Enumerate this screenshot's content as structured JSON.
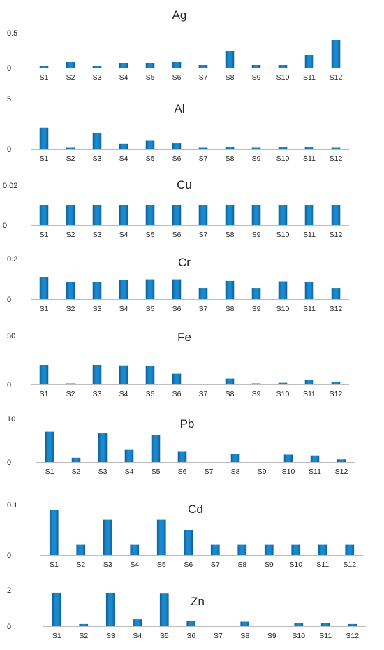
{
  "bar_color": "#1a8ad0",
  "bar_edge_color": "#0f5f95",
  "axis_color": "#bdbdbd",
  "chart_data": [
    {
      "type": "bar",
      "title": "Ag",
      "categories": [
        "S1",
        "S2",
        "S3",
        "S4",
        "S5",
        "S6",
        "S7",
        "S8",
        "S9",
        "S10",
        "S11",
        "S12"
      ],
      "values": [
        0.03,
        0.08,
        0.03,
        0.07,
        0.07,
        0.09,
        0.04,
        0.24,
        0.04,
        0.04,
        0.18,
        0.4
      ],
      "ylim": [
        0,
        0.5
      ],
      "yticks": [
        "0",
        "0.5"
      ],
      "grid": false
    },
    {
      "type": "bar",
      "title": "Al",
      "categories": [
        "S1",
        "S2",
        "S3",
        "S4",
        "S5",
        "S6",
        "S7",
        "S8",
        "S9",
        "S10",
        "S11",
        "S12"
      ],
      "values": [
        2.1,
        0.1,
        1.55,
        0.5,
        0.8,
        0.55,
        0.02,
        0.2,
        0.02,
        0.2,
        0.2,
        0.02
      ],
      "ylim": [
        0,
        5
      ],
      "yticks": [
        "0",
        "5"
      ],
      "grid": false
    },
    {
      "type": "bar",
      "title": "Cu",
      "categories": [
        "S1",
        "S2",
        "S3",
        "S4",
        "S5",
        "S6",
        "S7",
        "S8",
        "S9",
        "S10",
        "S11",
        "S12"
      ],
      "values": [
        0.01,
        0.01,
        0.01,
        0.01,
        0.01,
        0.01,
        0.01,
        0.01,
        0.01,
        0.01,
        0.01,
        0.01
      ],
      "ylim": [
        0,
        0.02
      ],
      "yticks": [
        "0",
        "0.02"
      ],
      "grid": false
    },
    {
      "type": "bar",
      "title": "Cr",
      "categories": [
        "S1",
        "S2",
        "S3",
        "S4",
        "S5",
        "S6",
        "S7",
        "S8",
        "S9",
        "S10",
        "S11",
        "S12"
      ],
      "values": [
        0.11,
        0.085,
        0.083,
        0.095,
        0.098,
        0.098,
        0.055,
        0.09,
        0.055,
        0.088,
        0.085,
        0.055
      ],
      "ylim": [
        0,
        0.2
      ],
      "yticks": [
        "0",
        "0.2"
      ],
      "grid": false
    },
    {
      "type": "bar",
      "title": "Fe",
      "categories": [
        "S1",
        "S2",
        "S3",
        "S4",
        "S5",
        "S6",
        "S7",
        "S8",
        "S9",
        "S10",
        "S11",
        "S12"
      ],
      "values": [
        20,
        0.5,
        20,
        19.5,
        19,
        11,
        0,
        6,
        0.2,
        1.7,
        5,
        2.5
      ],
      "ylim": [
        0,
        50
      ],
      "yticks": [
        "0",
        "50"
      ],
      "grid": false
    },
    {
      "type": "bar",
      "title": "Pb",
      "categories": [
        "S1",
        "S2",
        "S3",
        "S4",
        "S5",
        "S6",
        "S7",
        "S8",
        "S9",
        "S10",
        "S11",
        "S12"
      ],
      "values": [
        7,
        1,
        6.6,
        2.8,
        6.2,
        2.5,
        0,
        1.9,
        0,
        1.7,
        1.5,
        0.6
      ],
      "ylim": [
        0,
        10
      ],
      "yticks": [
        "0",
        "10"
      ],
      "grid": false
    },
    {
      "type": "bar",
      "title": "Cd",
      "categories": [
        "S1",
        "S2",
        "S3",
        "S4",
        "S5",
        "S6",
        "S7",
        "S8",
        "S9",
        "S10",
        "S11",
        "S12"
      ],
      "values": [
        0.09,
        0.02,
        0.07,
        0.02,
        0.07,
        0.05,
        0.02,
        0.02,
        0.02,
        0.02,
        0.02,
        0.02
      ],
      "ylim": [
        0,
        0.1
      ],
      "yticks": [
        "0",
        "0.1"
      ],
      "grid": false
    },
    {
      "type": "bar",
      "title": "Zn",
      "categories": [
        "S1",
        "S2",
        "S3",
        "S4",
        "S5",
        "S6",
        "S7",
        "S8",
        "S9",
        "S10",
        "S11",
        "S12"
      ],
      "values": [
        1.85,
        0.12,
        1.85,
        0.38,
        1.8,
        0.3,
        0,
        0.25,
        0,
        0.18,
        0.18,
        0.12
      ],
      "ylim": [
        0,
        2
      ],
      "yticks": [
        "0",
        "2"
      ],
      "grid": false
    }
  ]
}
